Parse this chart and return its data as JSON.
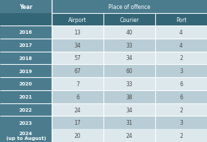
{
  "title": "Place of offence",
  "col_header_label": "Year",
  "columns": [
    "Airport",
    "Courier",
    "Port"
  ],
  "rows": [
    {
      "year": "2016",
      "values": [
        13,
        40,
        4
      ],
      "alt": false
    },
    {
      "year": "2017",
      "values": [
        34,
        33,
        4
      ],
      "alt": true
    },
    {
      "year": "2018",
      "values": [
        57,
        34,
        2
      ],
      "alt": false
    },
    {
      "year": "2019",
      "values": [
        67,
        60,
        3
      ],
      "alt": true
    },
    {
      "year": "2020",
      "values": [
        7,
        33,
        6
      ],
      "alt": false
    },
    {
      "year": "2021",
      "values": [
        6,
        38,
        6
      ],
      "alt": true
    },
    {
      "year": "2022",
      "values": [
        24,
        34,
        2
      ],
      "alt": false
    },
    {
      "year": "2023",
      "values": [
        17,
        31,
        3
      ],
      "alt": true
    },
    {
      "year": "2024\n(up to August)",
      "values": [
        20,
        24,
        2
      ],
      "alt": false
    }
  ],
  "header_bg": "#4a7c8e",
  "subheader_bg": "#336677",
  "year_col_bg": "#4a7c8e",
  "row_alt_bg": "#b8cdd6",
  "row_normal_bg": "#dde8ed",
  "header_text_color": "#ffffff",
  "year_text_color": "#ffffff",
  "data_text_color": "#4a4a4a",
  "border_color": "#ffffff",
  "fig_bg": "#dde8ed"
}
